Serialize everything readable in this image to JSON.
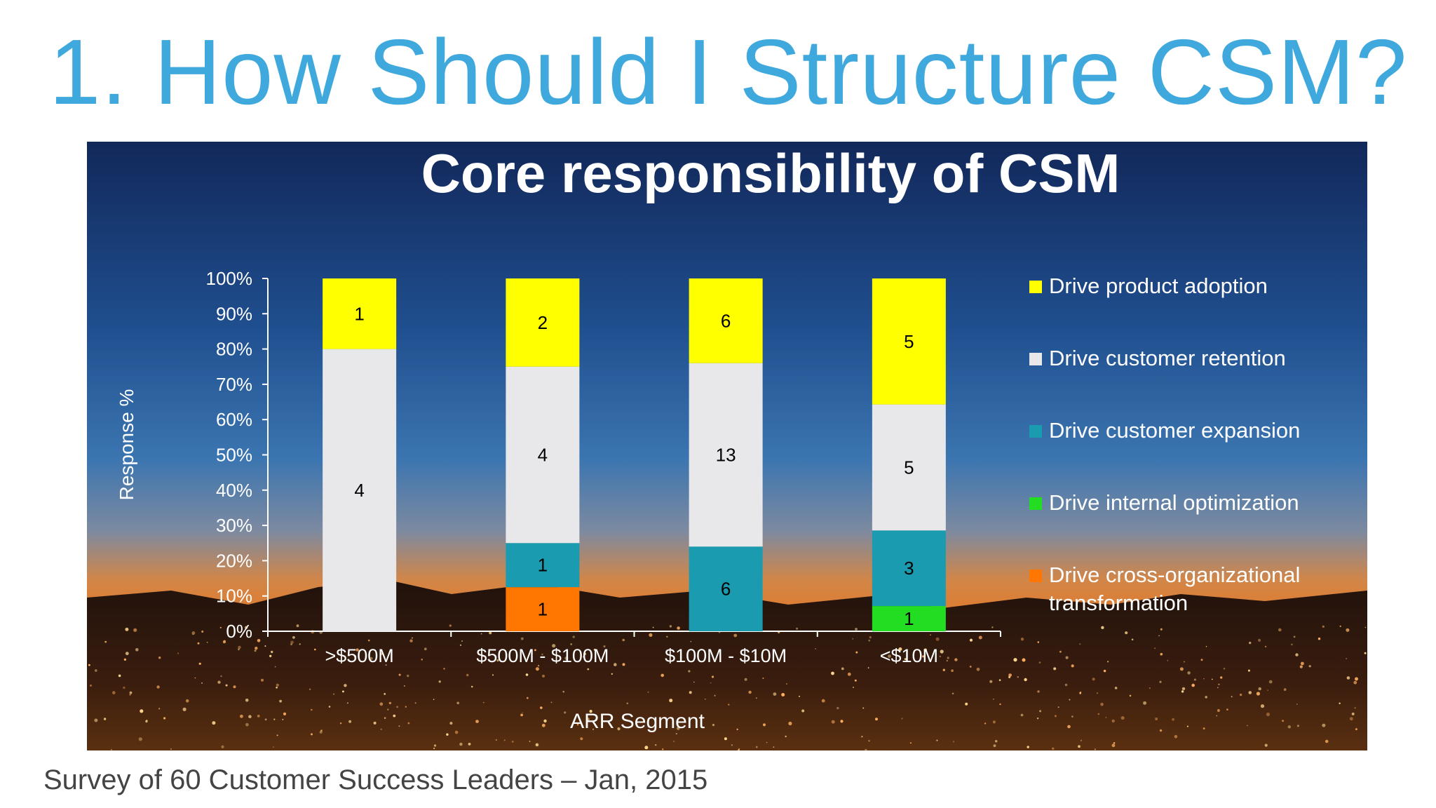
{
  "slide": {
    "title": "1.  How Should I Structure CSM?",
    "footnote": "Survey of 60 Customer Success Leaders – Jan, 2015"
  },
  "colors": {
    "title": "#3fa8dc",
    "product_adoption": "#ffff00",
    "customer_retention": "#e8e8ea",
    "customer_expansion": "#1a9bb0",
    "internal_optimization": "#22dd22",
    "cross_org_transformation": "#ff7700"
  },
  "chart_data": {
    "type": "bar",
    "stacked": true,
    "title": "Core responsibility of CSM",
    "xlabel": "ARR Segment",
    "ylabel": "Response %",
    "ylim": [
      0,
      100
    ],
    "yticks": [
      "0%",
      "10%",
      "20%",
      "30%",
      "40%",
      "50%",
      "60%",
      "70%",
      "80%",
      "90%",
      "100%"
    ],
    "legend_position": "right",
    "categories": [
      ">$500M",
      "$500M - $100M",
      "$100M - $10M",
      "<$10M"
    ],
    "series": [
      {
        "name": "Drive cross-organizational transformation",
        "color": "#ff7700",
        "values": [
          0,
          1,
          0,
          0
        ]
      },
      {
        "name": "Drive internal optimization",
        "color": "#22dd22",
        "values": [
          0,
          0,
          0,
          1
        ]
      },
      {
        "name": "Drive customer expansion",
        "color": "#1a9bb0",
        "values": [
          0,
          1,
          6,
          3
        ]
      },
      {
        "name": "Drive customer retention",
        "color": "#e8e8ea",
        "values": [
          4,
          4,
          13,
          5
        ]
      },
      {
        "name": "Drive product adoption",
        "color": "#ffff00",
        "values": [
          1,
          2,
          6,
          5
        ]
      }
    ],
    "legend_order": [
      "Drive product adoption",
      "Drive customer retention",
      "Drive customer expansion",
      "Drive internal optimization",
      "Drive cross-organizational transformation"
    ]
  }
}
